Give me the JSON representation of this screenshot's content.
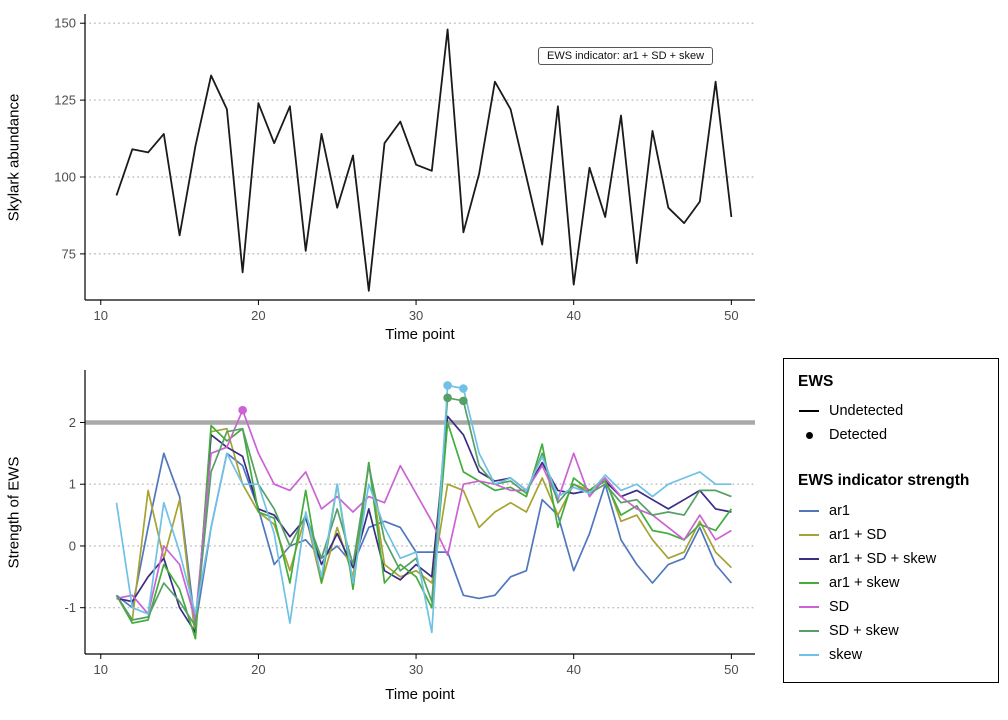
{
  "chart_data": [
    {
      "type": "line",
      "title": "",
      "xlabel": "Time point",
      "ylabel": "Skylark abundance",
      "annotation": "EWS indicator: ar1 + SD + skew",
      "xlim": [
        9,
        51.5
      ],
      "ylim": [
        60,
        153
      ],
      "xticks": [
        10,
        20,
        30,
        40,
        50
      ],
      "yticks": [
        75,
        100,
        125,
        150
      ],
      "grid": "dotted-horizontal",
      "x": [
        11,
        12,
        13,
        14,
        15,
        16,
        17,
        18,
        19,
        20,
        21,
        22,
        23,
        24,
        25,
        26,
        27,
        28,
        29,
        30,
        31,
        32,
        33,
        34,
        35,
        36,
        37,
        38,
        39,
        40,
        41,
        42,
        43,
        44,
        45,
        46,
        47,
        48,
        49,
        50
      ],
      "series": [
        {
          "name": "Skylark abundance",
          "color": "#1a1a1a",
          "width": 1.8,
          "values": [
            94,
            109,
            108,
            114,
            81,
            110,
            133,
            122,
            69,
            124,
            111,
            123,
            76,
            114,
            90,
            107,
            63,
            111,
            118,
            104,
            102,
            148,
            82,
            101,
            131,
            122,
            100,
            78,
            123,
            65,
            103,
            87,
            120,
            72,
            115,
            90,
            85,
            92,
            131,
            87
          ]
        }
      ]
    },
    {
      "type": "line",
      "title": "",
      "xlabel": "Time point",
      "ylabel": "Strength of EWS",
      "xlim": [
        9,
        51.5
      ],
      "ylim": [
        -1.75,
        2.85
      ],
      "xticks": [
        10,
        20,
        30,
        40,
        50
      ],
      "yticks": [
        -1,
        0,
        1,
        2
      ],
      "grid": "dotted-horizontal",
      "threshold": 2,
      "threshold_color": "#a9a9a9",
      "legend_position": "right",
      "x": [
        11,
        12,
        13,
        14,
        15,
        16,
        17,
        18,
        19,
        20,
        21,
        22,
        23,
        24,
        25,
        26,
        27,
        28,
        29,
        30,
        31,
        32,
        33,
        34,
        35,
        36,
        37,
        38,
        39,
        40,
        41,
        42,
        43,
        44,
        45,
        46,
        47,
        48,
        49,
        50
      ],
      "series": [
        {
          "name": "ar1",
          "color": "#5077be",
          "values": [
            -0.8,
            -1.0,
            0.3,
            1.5,
            0.8,
            -1.3,
            0.3,
            1.5,
            1.3,
            0.6,
            -0.3,
            0.0,
            0.1,
            -0.2,
            0.0,
            -0.3,
            0.3,
            0.4,
            0.3,
            -0.1,
            -0.1,
            -0.1,
            -0.8,
            -0.85,
            -0.8,
            -0.5,
            -0.4,
            0.75,
            0.5,
            -0.4,
            0.2,
            1.0,
            0.1,
            -0.3,
            -0.6,
            -0.3,
            -0.2,
            0.3,
            -0.3,
            -0.6
          ]
        },
        {
          "name": "ar1 + SD",
          "color": "#a6a332",
          "values": [
            -0.8,
            -1.2,
            0.9,
            -0.2,
            0.75,
            -1.5,
            1.85,
            1.9,
            1.0,
            0.55,
            0.35,
            -0.4,
            0.5,
            -0.6,
            0.3,
            -0.5,
            1.35,
            -0.3,
            -0.5,
            -0.4,
            -0.6,
            1.0,
            0.9,
            0.3,
            0.55,
            0.7,
            0.55,
            1.1,
            0.5,
            1.0,
            0.9,
            1.1,
            0.4,
            0.5,
            0.1,
            -0.2,
            -0.1,
            0.4,
            -0.1,
            -0.35
          ]
        },
        {
          "name": "ar1 + SD + skew",
          "color": "#3b2c85",
          "values": [
            -0.85,
            -0.9,
            -0.5,
            -0.2,
            -1.0,
            -1.4,
            1.8,
            1.6,
            1.45,
            0.6,
            0.5,
            0.15,
            0.45,
            -0.3,
            0.2,
            -0.35,
            0.6,
            -0.4,
            -0.55,
            -0.3,
            -0.5,
            2.1,
            1.8,
            1.2,
            1.05,
            1.1,
            0.9,
            1.35,
            0.9,
            0.85,
            0.9,
            1.05,
            0.8,
            0.9,
            0.75,
            0.6,
            0.75,
            0.9,
            0.6,
            0.55
          ]
        },
        {
          "name": "ar1 + skew",
          "color": "#41ad3b",
          "values": [
            -0.8,
            -1.25,
            -1.2,
            -0.3,
            -0.7,
            -1.5,
            1.95,
            1.7,
            1.9,
            0.55,
            0.45,
            -0.6,
            0.9,
            -0.6,
            1.0,
            -0.7,
            1.35,
            -0.6,
            -0.3,
            -0.5,
            -1.0,
            2.0,
            1.2,
            1.05,
            0.9,
            0.95,
            0.8,
            1.65,
            0.3,
            1.1,
            0.9,
            1.05,
            0.5,
            0.65,
            0.25,
            0.2,
            0.1,
            0.35,
            0.25,
            0.6
          ]
        },
        {
          "name": "SD",
          "color": "#cb63d4",
          "values": [
            -0.85,
            -0.8,
            -1.1,
            0.0,
            -0.3,
            -1.2,
            1.5,
            1.6,
            2.2,
            1.5,
            1.0,
            0.9,
            1.2,
            0.6,
            0.8,
            0.55,
            0.8,
            0.7,
            1.3,
            0.85,
            0.4,
            -0.15,
            1.0,
            1.05,
            1.0,
            0.9,
            0.9,
            1.3,
            0.75,
            1.5,
            0.8,
            1.1,
            0.8,
            0.6,
            0.5,
            0.3,
            0.1,
            0.5,
            0.1,
            0.25
          ]
        },
        {
          "name": "SD + skew",
          "color": "#56a065",
          "values": [
            -0.8,
            -1.2,
            -1.15,
            -0.6,
            -0.9,
            -1.3,
            1.2,
            1.85,
            1.9,
            1.0,
            0.6,
            0.0,
            0.5,
            -0.2,
            0.6,
            -0.3,
            1.3,
            0.1,
            -0.4,
            -0.2,
            -0.9,
            2.4,
            2.35,
            1.3,
            1.0,
            1.05,
            0.85,
            1.5,
            0.7,
            1.0,
            0.85,
            1.0,
            0.7,
            0.75,
            0.5,
            0.55,
            0.5,
            0.9,
            0.9,
            0.8
          ]
        },
        {
          "name": "skew",
          "color": "#70c1e6",
          "values": [
            0.7,
            -1.0,
            -1.1,
            0.7,
            -0.1,
            -1.1,
            0.3,
            1.5,
            1.0,
            1.0,
            0.2,
            -1.25,
            0.55,
            -0.5,
            1.0,
            -0.6,
            1.0,
            0.3,
            -0.2,
            -0.1,
            -1.4,
            2.6,
            2.55,
            1.5,
            1.0,
            1.1,
            0.9,
            1.45,
            0.8,
            0.95,
            0.85,
            1.15,
            0.9,
            1.0,
            0.8,
            1.0,
            1.1,
            1.2,
            1.0,
            1.0
          ]
        }
      ],
      "detected": [
        {
          "series": "SD",
          "x": 19,
          "y": 2.2
        },
        {
          "series": "skew",
          "x": 32,
          "y": 2.6
        },
        {
          "series": "skew",
          "x": 33,
          "y": 2.55
        },
        {
          "series": "SD + skew",
          "x": 32,
          "y": 2.4
        },
        {
          "series": "SD + skew",
          "x": 33,
          "y": 2.35
        }
      ]
    }
  ],
  "legend": {
    "ews_title": "EWS",
    "ews_items": [
      {
        "label": "Undetected",
        "glyph": "line"
      },
      {
        "label": "Detected",
        "glyph": "point"
      }
    ],
    "indicator_title": "EWS indicator strength"
  }
}
